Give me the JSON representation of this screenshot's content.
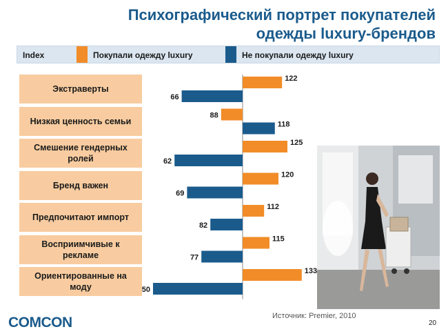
{
  "title_line1": "Психографический портрет покупателей",
  "title_line2": "одежды luxury-брендов",
  "legend": {
    "index_label": "Index",
    "bought_label": "Покупали одежду luxury",
    "not_bought_label": "Не покупали одежду luxury",
    "bought_color": "#f28c28",
    "not_bought_color": "#1b5b8c"
  },
  "chart_data": {
    "type": "bar",
    "orientation": "horizontal-diverging",
    "baseline": 100,
    "categories": [
      "Экстраверты",
      "Низкая ценность семьи",
      "Смешение гендерных ролей",
      "Бренд важен",
      "Предпочитают импорт",
      "Восприимчивые к рекламе",
      "Ориентированные на моду"
    ],
    "series": [
      {
        "name": "Покупали одежду luxury",
        "color": "#f28c28",
        "values": [
          122,
          88,
          125,
          120,
          112,
          115,
          133
        ]
      },
      {
        "name": "Не покупали одежду luxury",
        "color": "#1b5b8c",
        "values": [
          66,
          118,
          62,
          69,
          82,
          77,
          50
        ]
      }
    ]
  },
  "category_labels": [
    {
      "line1": "Экстраверты",
      "line2": ""
    },
    {
      "line1": "Низкая ценность семьи",
      "line2": ""
    },
    {
      "line1": "Смешение гендерных",
      "line2": "ролей"
    },
    {
      "line1": "Бренд важен",
      "line2": ""
    },
    {
      "line1": "Предпочитают импорт",
      "line2": ""
    },
    {
      "line1": "Восприимчивые к",
      "line2": "рекламе"
    },
    {
      "line1": "Ориентированные на",
      "line2": "моду"
    }
  ],
  "source": "Источник: Premier, 2010",
  "logo": "COMCON",
  "page_number": "20"
}
